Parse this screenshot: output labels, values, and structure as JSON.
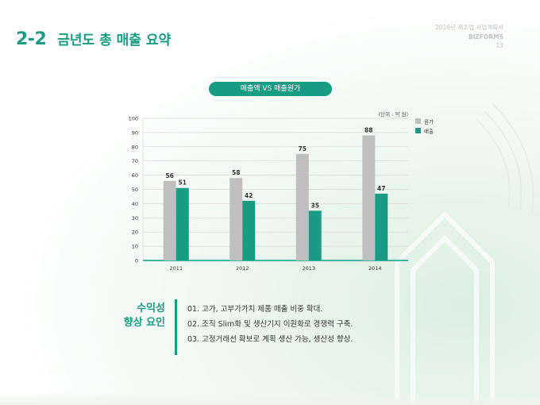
{
  "header": {
    "section_number": "2-2",
    "section_title": "금년도 총 매출 요약",
    "doc_title": "2016년 제조업 사업계획서",
    "brand": "BIZFORMS",
    "page_number": "13"
  },
  "chart_pill": "매출액 VS 매출원가",
  "chart_data": {
    "type": "bar",
    "categories": [
      "2011",
      "2012",
      "2013",
      "2014"
    ],
    "series": [
      {
        "name": "원가",
        "values": [
          56,
          58,
          75,
          88
        ],
        "color": "#bfbfbf"
      },
      {
        "name": "매출",
        "values": [
          51,
          42,
          35,
          47
        ],
        "color": "#1a9b84"
      }
    ],
    "unit_note": "(단위 : 억 원)",
    "ylim": [
      0,
      100
    ],
    "yticks": [
      0,
      10,
      20,
      30,
      40,
      50,
      60,
      70,
      80,
      90,
      100
    ],
    "grid": true,
    "legend_position": "right"
  },
  "summary": {
    "label_line1": "수익성",
    "label_line2": "향상 요인",
    "items": [
      "01. 고가, 고부가가치 제품 매출 비중 확대.",
      "02. 조직 Slim화 및 생산기지 이원화로 경쟁력 구축.",
      "03. 고정거래선 확보로 계획 생산 가능, 생산성 향상."
    ]
  },
  "colors": {
    "accent": "#1a9b84",
    "cost_bar": "#bfbfbf"
  }
}
